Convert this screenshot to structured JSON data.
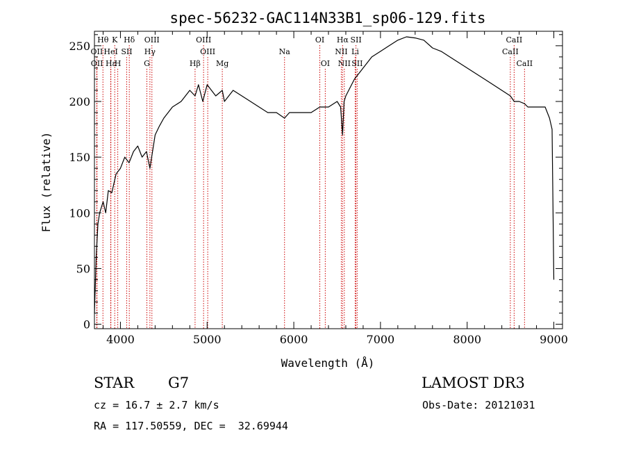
{
  "chart_data": {
    "type": "line",
    "title": "spec-56232-GAC114N33B1_sp06-129.fits",
    "xlabel": "Wavelength (Å)",
    "ylabel": "Flux (relative)",
    "xlim": [
      3700,
      9100
    ],
    "ylim": [
      -4,
      263
    ],
    "x_ticks": [
      4000,
      5000,
      6000,
      7000,
      8000,
      9000
    ],
    "y_ticks": [
      0,
      50,
      100,
      150,
      200,
      250
    ],
    "line_color": "#000000",
    "marker_color": "#cc0000",
    "series": [
      {
        "name": "flux",
        "x": [
          3700,
          3720,
          3740,
          3760,
          3780,
          3800,
          3830,
          3860,
          3900,
          3950,
          4000,
          4050,
          4100,
          4150,
          4200,
          4250,
          4300,
          4340,
          4400,
          4450,
          4500,
          4600,
          4700,
          4800,
          4861,
          4900,
          4950,
          5000,
          5050,
          5100,
          5175,
          5200,
          5300,
          5400,
          5500,
          5600,
          5700,
          5800,
          5893,
          5950,
          6000,
          6100,
          6200,
          6300,
          6350,
          6400,
          6500,
          6540,
          6563,
          6580,
          6600,
          6700,
          6800,
          6900,
          7000,
          7100,
          7200,
          7300,
          7400,
          7500,
          7600,
          7700,
          7800,
          7900,
          8000,
          8100,
          8200,
          8300,
          8400,
          8498,
          8542,
          8600,
          8662,
          8700,
          8800,
          8900,
          8950,
          8980,
          9000
        ],
        "y": [
          10,
          60,
          90,
          100,
          105,
          110,
          100,
          120,
          118,
          135,
          140,
          150,
          145,
          155,
          160,
          150,
          155,
          140,
          170,
          178,
          185,
          195,
          200,
          210,
          205,
          215,
          200,
          215,
          210,
          205,
          210,
          200,
          210,
          205,
          200,
          195,
          190,
          190,
          185,
          190,
          190,
          190,
          190,
          195,
          195,
          195,
          200,
          195,
          170,
          200,
          205,
          220,
          230,
          240,
          245,
          250,
          255,
          258,
          257,
          255,
          248,
          245,
          240,
          235,
          230,
          225,
          220,
          215,
          210,
          205,
          200,
          200,
          198,
          195,
          195,
          195,
          185,
          175,
          40
        ]
      }
    ],
    "spectral_lines": [
      {
        "label": "Hθ",
        "x": 3798,
        "row": 0
      },
      {
        "label": "K",
        "x": 3934,
        "row": 0
      },
      {
        "label": "Hδ",
        "x": 4102,
        "row": 0
      },
      {
        "label": "OIII",
        "x": 4363,
        "row": 0
      },
      {
        "label": "OIII",
        "x": 4959,
        "row": 0
      },
      {
        "label": "OI",
        "x": 6300,
        "row": 0
      },
      {
        "label": "Hα",
        "x": 6563,
        "row": 0
      },
      {
        "label": "SII",
        "x": 6717,
        "row": 0
      },
      {
        "label": "CaII",
        "x": 8542,
        "row": 0
      },
      {
        "label": "OII",
        "x": 3727,
        "row": 1
      },
      {
        "label": "HeI",
        "x": 3889,
        "row": 1
      },
      {
        "label": "SII",
        "x": 4072,
        "row": 1
      },
      {
        "label": "Hγ",
        "x": 4340,
        "row": 1
      },
      {
        "label": "OIII",
        "x": 5007,
        "row": 1
      },
      {
        "label": "Na",
        "x": 5893,
        "row": 1
      },
      {
        "label": "NII",
        "x": 6548,
        "row": 1
      },
      {
        "label": "Li",
        "x": 6708,
        "row": 1
      },
      {
        "label": "CaII",
        "x": 8498,
        "row": 1
      },
      {
        "label": "OII",
        "x": 3729,
        "row": 2
      },
      {
        "label": "Hε",
        "x": 3889,
        "row": 2
      },
      {
        "label": "H",
        "x": 3969,
        "row": 2
      },
      {
        "label": "G",
        "x": 4305,
        "row": 2
      },
      {
        "label": "Hβ",
        "x": 4861,
        "row": 2
      },
      {
        "label": "Mg",
        "x": 5175,
        "row": 2
      },
      {
        "label": "OI",
        "x": 6363,
        "row": 2
      },
      {
        "label": "NII",
        "x": 6583,
        "row": 2
      },
      {
        "label": "SII",
        "x": 6731,
        "row": 2
      },
      {
        "label": "CaII",
        "x": 8662,
        "row": 2
      }
    ]
  },
  "info": {
    "object_class": "STAR",
    "subclass": "G7",
    "survey": "LAMOST DR3",
    "redshift": "cz = 16.7 ± 2.7 km/s",
    "obs_date": "Obs-Date: 20121031",
    "coords": "RA = 117.50559, DEC =  32.69944"
  }
}
